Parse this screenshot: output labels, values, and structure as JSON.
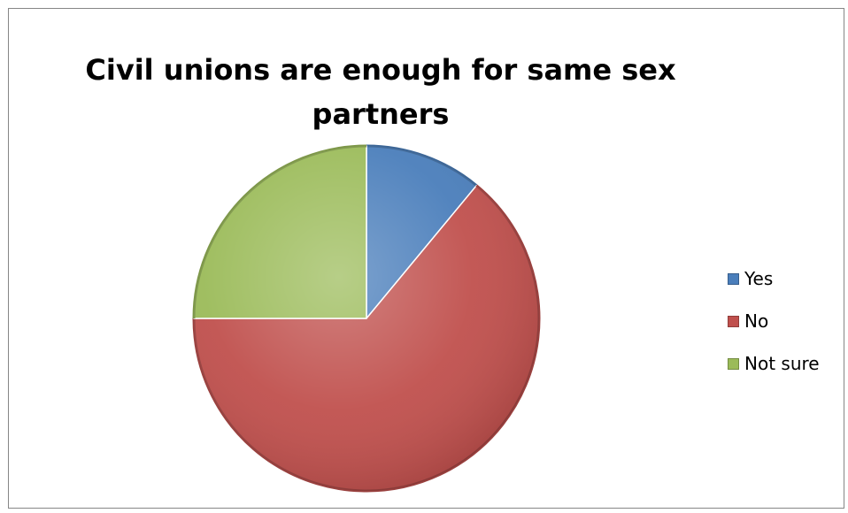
{
  "chart_data": {
    "type": "pie",
    "title": "Civil unions are enough for same sex partners",
    "title_lines": [
      "Civil unions are enough for same sex",
      "partners"
    ],
    "categories": [
      "Yes",
      "No",
      "Not sure"
    ],
    "values": [
      11,
      64,
      25
    ],
    "colors": [
      "#4A7EBB",
      "#C0504D",
      "#9BBB59"
    ],
    "legend_position": "right",
    "start_angle": "12 o'clock, clockwise"
  }
}
